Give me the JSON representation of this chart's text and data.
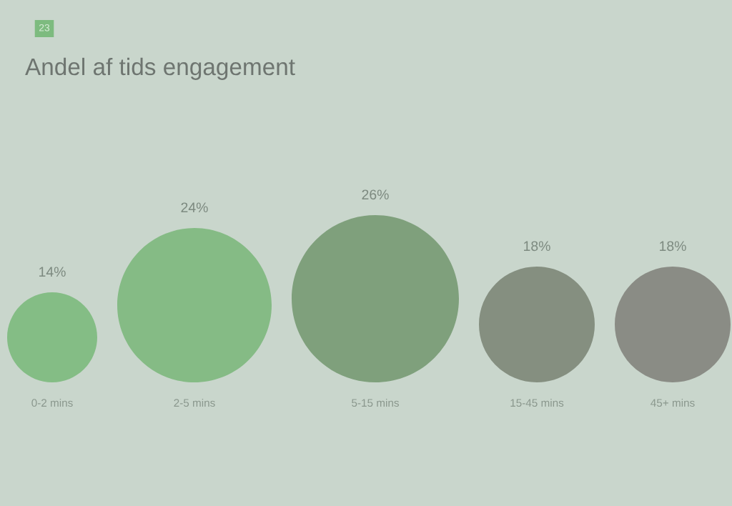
{
  "chart_data": {
    "type": "other",
    "title": "Andel af tids engagement",
    "categories": [
      "0-2 mins",
      "2-5 mins",
      "5-15 mins",
      "15-45 mins",
      "45+ mins"
    ],
    "values": [
      14,
      24,
      26,
      18,
      18
    ],
    "colors": [
      "#84bd85",
      "#85bb85",
      "#7fa07c",
      "#858f80",
      "#8a8c85"
    ],
    "value_labels": [
      "14%",
      "24%",
      "26%",
      "18%",
      "18%"
    ],
    "annotations": [
      "23"
    ]
  }
}
